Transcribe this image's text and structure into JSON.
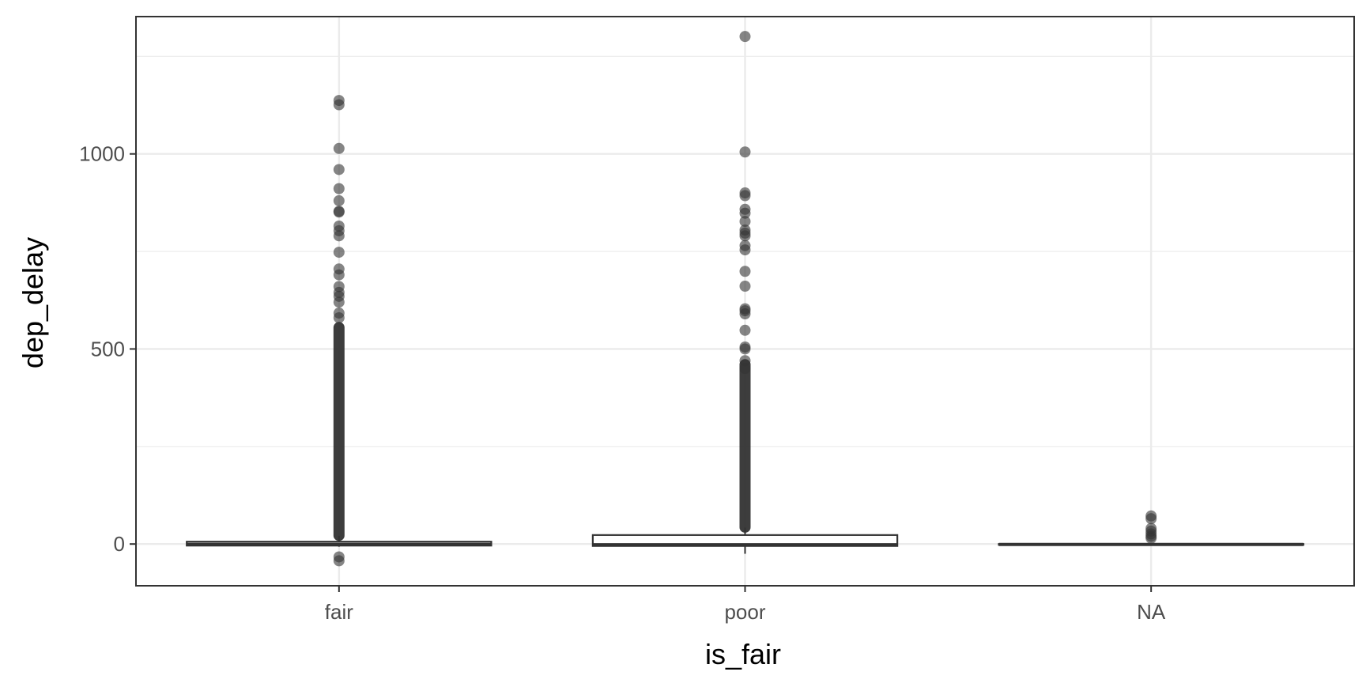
{
  "chart_data": {
    "type": "boxplot",
    "xlabel": "is_fair",
    "ylabel": "dep_delay",
    "categories": [
      "fair",
      "poor",
      "NA"
    ],
    "ylim": [
      -107,
      1352
    ],
    "y_ticks": [
      0,
      500,
      1000
    ],
    "y_minor_ticks": [
      250,
      750,
      1250
    ],
    "grid": true,
    "theme": "bw",
    "colors": {
      "box_line": "#333333",
      "box_fill": "#ffffff",
      "outlier": "#333333",
      "grid": "#ebebeb",
      "panel_border": "#333333",
      "tick_label": "#4d4d4d"
    },
    "boxes": [
      {
        "category": "fair",
        "min": -7,
        "q1": -4,
        "median": -1,
        "q3": 6,
        "max": 21,
        "outliers": [
          -43,
          -33,
          1137,
          1126,
          1014,
          960,
          911,
          880,
          853,
          851,
          815,
          803,
          790,
          748,
          705,
          690,
          660,
          645,
          635,
          620,
          592,
          580
        ],
        "outlier_band": [
          22,
          555
        ]
      },
      {
        "category": "poor",
        "min": -25,
        "q1": -5,
        "median": -2,
        "q3": 23,
        "max": 42,
        "outliers": [
          1301,
          1005,
          900,
          893,
          858,
          848,
          827,
          805,
          797,
          790,
          765,
          754,
          699,
          661,
          603,
          598,
          590,
          548,
          505,
          500,
          470,
          450
        ],
        "outlier_band": [
          43,
          460
        ]
      },
      {
        "category": "NA",
        "min": -3,
        "q1": -2,
        "median": -1,
        "q3": 0,
        "max": 2,
        "outliers": [
          72,
          65,
          40,
          33,
          26,
          20,
          15
        ],
        "outlier_band": null
      }
    ]
  }
}
